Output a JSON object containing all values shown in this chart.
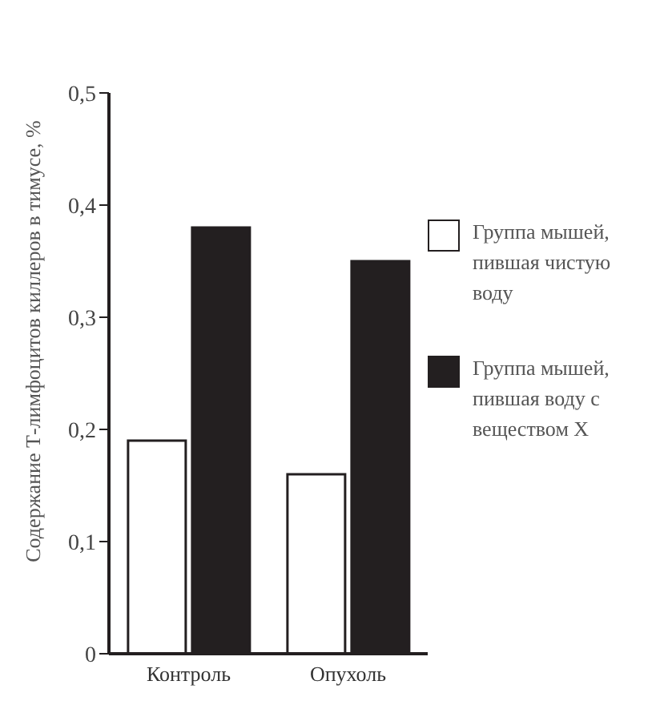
{
  "chart_data": {
    "type": "bar",
    "ylabel": "Содержание Т-лимфоцитов киллеров в тимусе, %",
    "categories": [
      "Контроль",
      "Опухоль"
    ],
    "series": [
      {
        "name": "Группа мышей, пившая чистую воду",
        "color": "#ffffff",
        "values": [
          0.19,
          0.16
        ]
      },
      {
        "name": "Группа мышей, пившая воду с веществом X",
        "color": "#231f20",
        "values": [
          0.38,
          0.35
        ]
      }
    ],
    "ylim": [
      0,
      0.5
    ],
    "yticks": [
      0,
      {
        "value": 0.1,
        "label": "0,1"
      },
      {
        "value": 0.2,
        "label": "0,2"
      },
      {
        "value": 0.3,
        "label": "0,3"
      },
      {
        "value": 0.4,
        "label": "0,4"
      },
      {
        "value": 0.5,
        "label": "0,5"
      }
    ],
    "legend": "right"
  }
}
